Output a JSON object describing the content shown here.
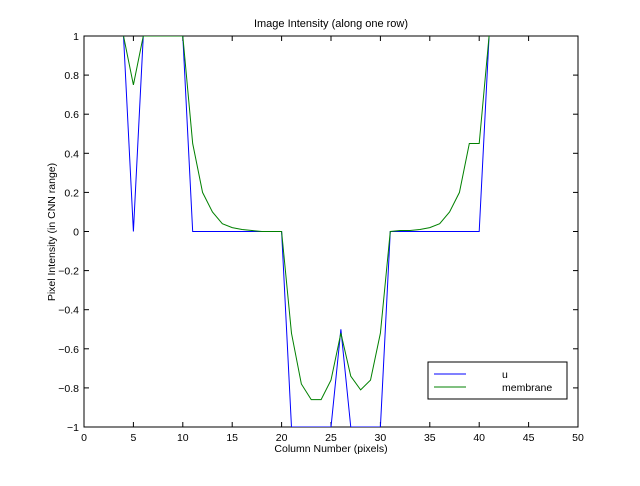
{
  "chart_data": {
    "type": "line",
    "title": "Image Intensity (along one row)",
    "xlabel": "Column Number (pixels)",
    "ylabel": "Pixel Intensity (in CNN range)",
    "xlim": [
      0,
      50
    ],
    "ylim": [
      -1,
      1
    ],
    "xticks": [
      0,
      5,
      10,
      15,
      20,
      25,
      30,
      35,
      40,
      45,
      50
    ],
    "yticks": [
      1,
      0.8,
      0.6,
      0.4,
      0.2,
      0,
      -0.2,
      -0.4,
      -0.6,
      -0.8,
      -1
    ],
    "ytick_labels": [
      "1",
      "0.8",
      "0.6",
      "0.4",
      "0.2",
      "0",
      "−0.2",
      "−0.4",
      "−0.6",
      "−0.8",
      "−1"
    ],
    "grid": false,
    "legend_position": "bottom-right",
    "series": [
      {
        "name": "u",
        "color": "#0000ff",
        "x": [
          4,
          5,
          6,
          10,
          11,
          12,
          13,
          14,
          15,
          16,
          17,
          18,
          19,
          20,
          21,
          25,
          26,
          27,
          30,
          31,
          32,
          33,
          34,
          35,
          36,
          37,
          38,
          39,
          40,
          41
        ],
        "y": [
          1,
          0,
          1,
          1,
          0,
          0,
          0,
          0,
          0,
          0,
          0,
          0,
          0,
          0,
          -1,
          -1,
          -0.5,
          -1,
          -1,
          0,
          0,
          0,
          0,
          0,
          0,
          0,
          0,
          0,
          0,
          1
        ]
      },
      {
        "name": "membrane",
        "color": "#008000",
        "x": [
          4,
          5,
          6,
          10,
          11,
          12,
          13,
          14,
          15,
          16,
          17,
          18,
          19,
          20,
          21,
          22,
          23,
          24,
          25,
          26,
          27,
          28,
          29,
          30,
          31,
          32,
          33,
          34,
          35,
          36,
          37,
          38,
          39,
          40,
          41
        ],
        "y": [
          1,
          0.75,
          1,
          1,
          0.45,
          0.2,
          0.1,
          0.04,
          0.02,
          0.01,
          0.005,
          0,
          0,
          0,
          -0.52,
          -0.78,
          -0.86,
          -0.86,
          -0.76,
          -0.52,
          -0.74,
          -0.81,
          -0.76,
          -0.52,
          0,
          0.005,
          0.005,
          0.01,
          0.02,
          0.04,
          0.1,
          0.2,
          0.45,
          0.45,
          1
        ]
      }
    ]
  }
}
